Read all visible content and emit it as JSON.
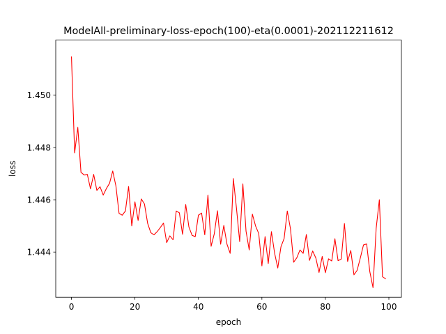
{
  "chart_data": {
    "type": "line",
    "title": "ModelAll-preliminary-loss-epoch(100)-eta(0.0001)-202112211612",
    "xlabel": "epoch",
    "ylabel": "loss",
    "xlim": [
      -4.95,
      103.95
    ],
    "ylim": [
      1.44227,
      1.45211
    ],
    "xticks": [
      0,
      20,
      40,
      60,
      80,
      100
    ],
    "xtick_labels": [
      "0",
      "20",
      "40",
      "60",
      "80",
      "100"
    ],
    "yticks": [
      1.444,
      1.446,
      1.448,
      1.45
    ],
    "ytick_labels": [
      "1.444",
      "1.446",
      "1.448",
      "1.450"
    ],
    "grid": false,
    "line_color": "#ff0000",
    "series": [
      {
        "x": [
          0,
          1,
          2,
          3,
          4,
          5,
          6,
          7,
          8,
          9,
          10,
          11,
          12,
          13,
          14,
          15,
          16,
          17,
          18,
          19,
          20,
          21,
          22,
          23,
          24,
          25,
          26,
          27,
          28,
          29,
          30,
          31,
          32,
          33,
          34,
          35,
          36,
          37,
          38,
          39,
          40,
          41,
          42,
          43,
          44,
          45,
          46,
          47,
          48,
          49,
          50,
          51,
          52,
          53,
          54,
          55,
          56,
          57,
          58,
          59,
          60,
          61,
          62,
          63,
          64,
          65,
          66,
          67,
          68,
          69,
          70,
          71,
          72,
          73,
          74,
          75,
          76,
          77,
          78,
          79,
          80,
          81,
          82,
          83,
          84,
          85,
          86,
          87,
          88,
          89,
          90,
          91,
          92,
          93,
          94,
          95,
          96,
          97,
          98,
          99
        ],
        "values": [
          1.45148,
          1.44779,
          1.44877,
          1.44705,
          1.44695,
          1.44697,
          1.44642,
          1.44697,
          1.44636,
          1.4465,
          1.44618,
          1.44643,
          1.44663,
          1.4471,
          1.44653,
          1.44548,
          1.44541,
          1.44557,
          1.44651,
          1.445,
          1.44592,
          1.44521,
          1.44603,
          1.44584,
          1.4451,
          1.44474,
          1.44466,
          1.44478,
          1.44494,
          1.44511,
          1.44436,
          1.44462,
          1.44447,
          1.44557,
          1.4455,
          1.44468,
          1.44582,
          1.44496,
          1.44464,
          1.44459,
          1.44541,
          1.44549,
          1.44466,
          1.44618,
          1.44422,
          1.4447,
          1.44558,
          1.4443,
          1.44502,
          1.4443,
          1.44395,
          1.44681,
          1.44566,
          1.4444,
          1.44661,
          1.4448,
          1.44408,
          1.44545,
          1.445,
          1.44471,
          1.44347,
          1.44459,
          1.44356,
          1.44478,
          1.44396,
          1.44339,
          1.4442,
          1.44452,
          1.44557,
          1.44489,
          1.44361,
          1.44378,
          1.44408,
          1.44395,
          1.44467,
          1.44368,
          1.44404,
          1.44377,
          1.44322,
          1.44383,
          1.44321,
          1.44374,
          1.44366,
          1.44451,
          1.44367,
          1.44373,
          1.44509,
          1.44364,
          1.44406,
          1.44313,
          1.4433,
          1.44377,
          1.44427,
          1.44431,
          1.44325,
          1.44264,
          1.44491,
          1.446,
          1.44306,
          1.44297
        ]
      }
    ]
  }
}
